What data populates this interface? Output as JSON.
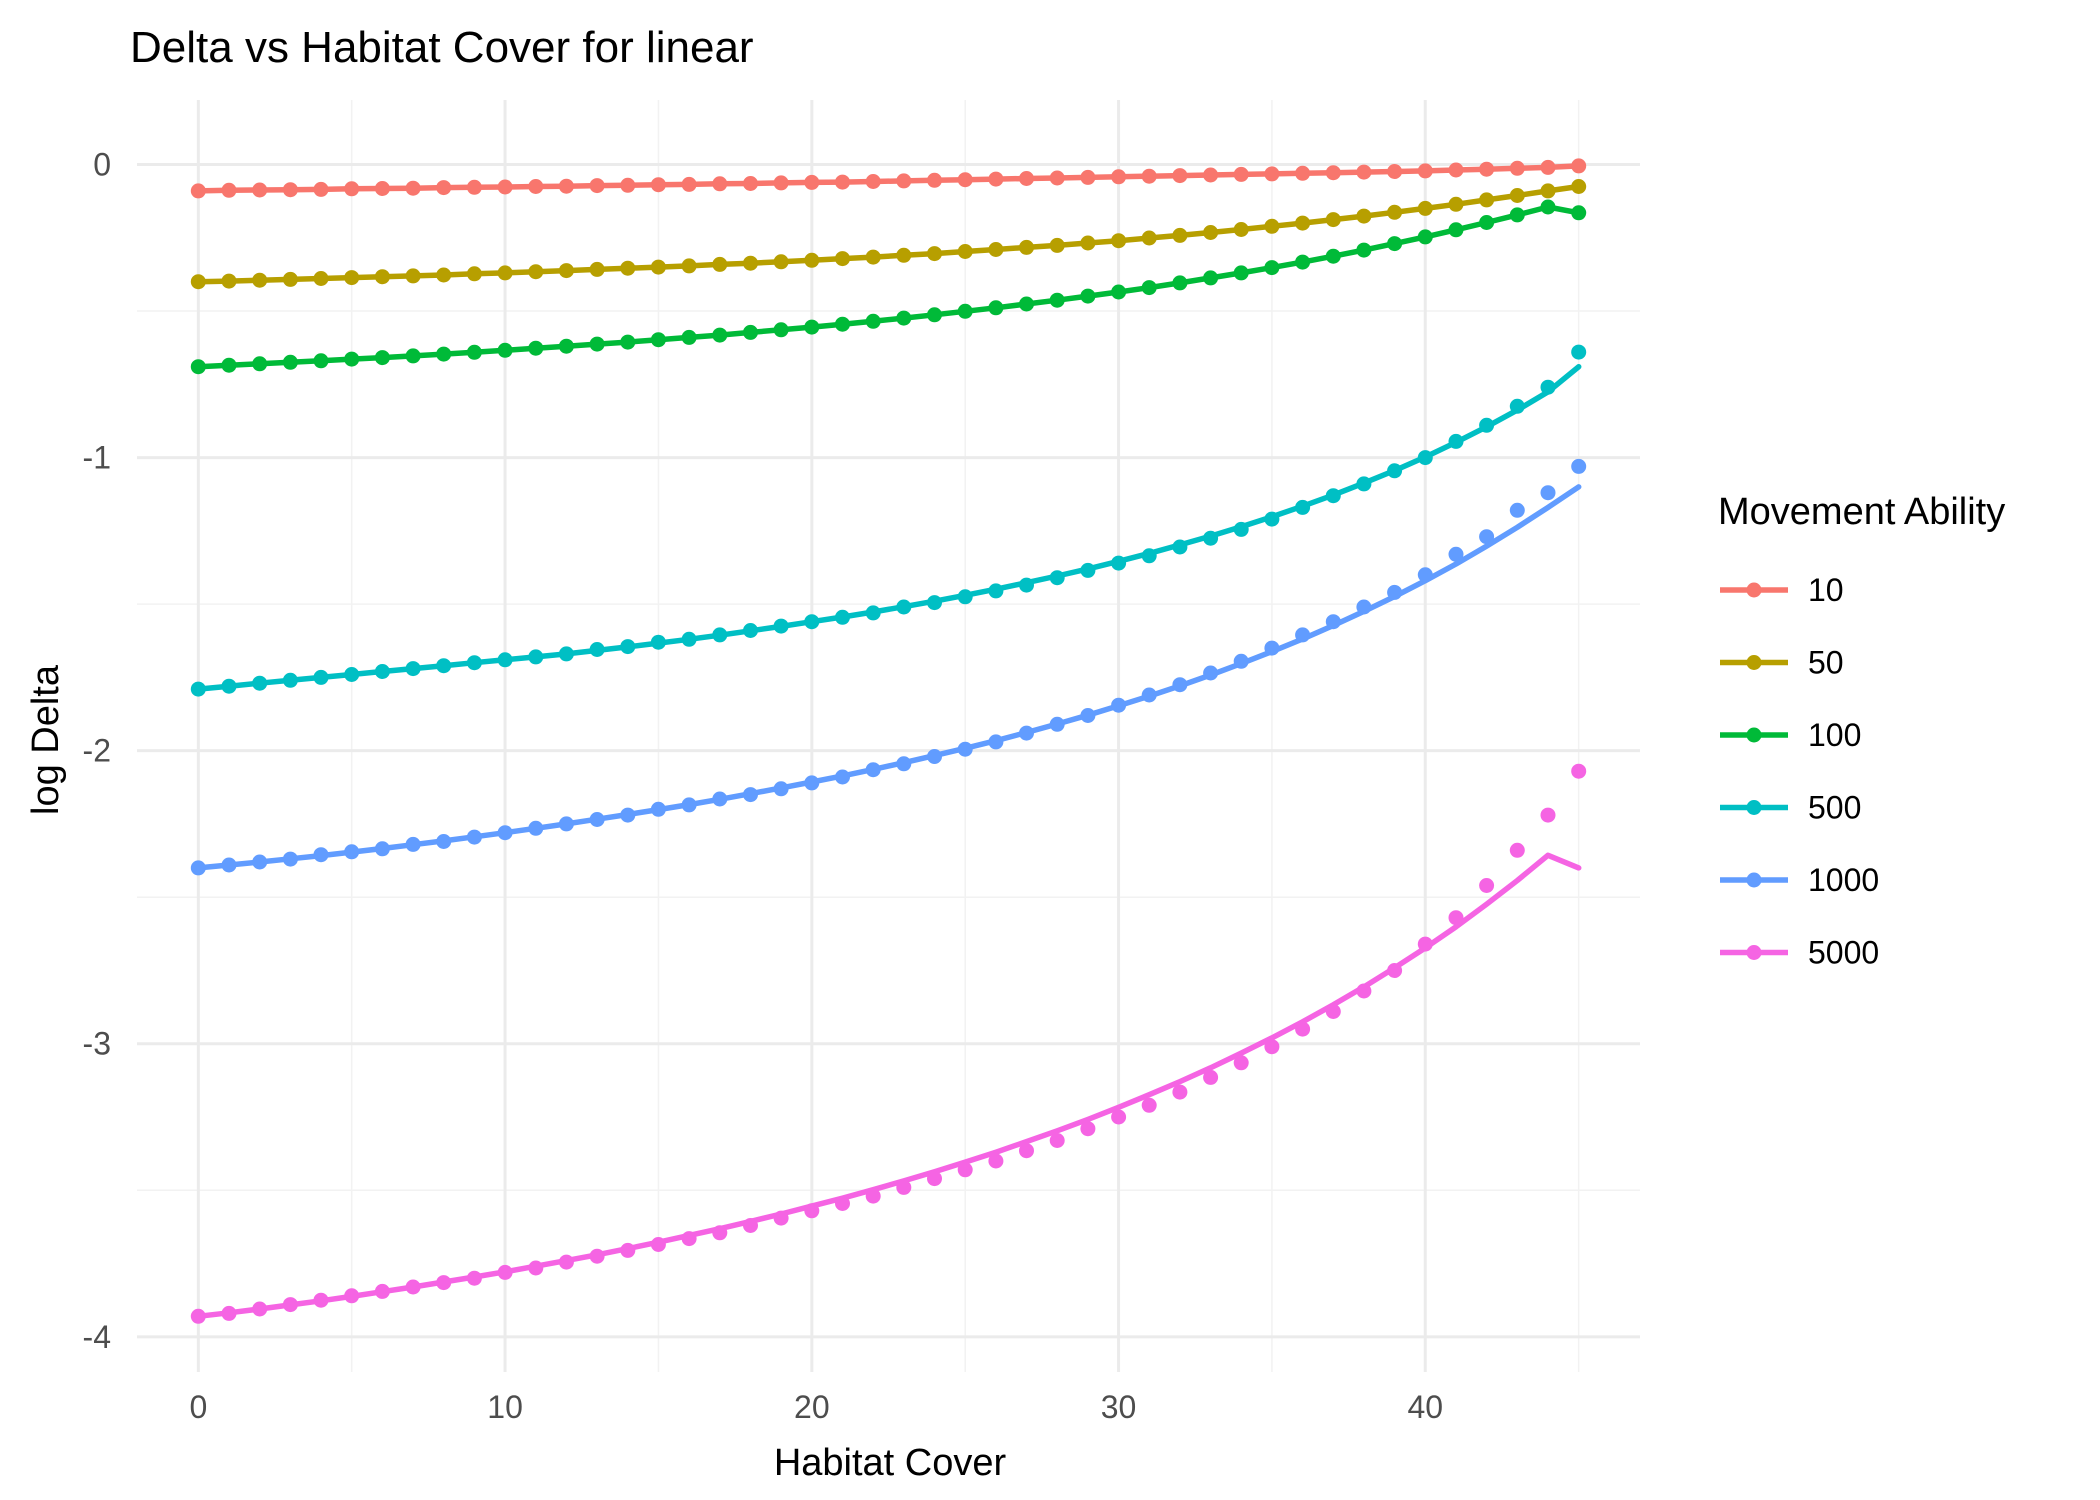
{
  "chart_data": {
    "type": "line",
    "title": "Delta vs Habitat Cover for linear",
    "xlabel": "Habitat Cover",
    "ylabel": "log Delta",
    "xlim": [
      -2,
      47
    ],
    "ylim": [
      -4.12,
      0.22
    ],
    "x_ticks": [
      0,
      10,
      20,
      30,
      40
    ],
    "y_ticks": [
      0,
      -1,
      -2,
      -3,
      -4
    ],
    "grid": true,
    "legend": {
      "title": "Movement Ability",
      "position": "right"
    },
    "x": [
      0,
      1,
      2,
      3,
      4,
      5,
      6,
      7,
      8,
      9,
      10,
      11,
      12,
      13,
      14,
      15,
      16,
      17,
      18,
      19,
      20,
      21,
      22,
      23,
      24,
      25,
      26,
      27,
      28,
      29,
      30,
      31,
      32,
      33,
      34,
      35,
      36,
      37,
      38,
      39,
      40,
      41,
      42,
      43,
      44,
      45
    ],
    "series": [
      {
        "name": "10",
        "color": "#F8766D",
        "values": [
          -0.09,
          -0.088,
          -0.087,
          -0.086,
          -0.085,
          -0.083,
          -0.082,
          -0.081,
          -0.079,
          -0.078,
          -0.077,
          -0.075,
          -0.074,
          -0.072,
          -0.071,
          -0.069,
          -0.068,
          -0.066,
          -0.065,
          -0.063,
          -0.061,
          -0.06,
          -0.058,
          -0.056,
          -0.054,
          -0.052,
          -0.05,
          -0.048,
          -0.046,
          -0.044,
          -0.042,
          -0.04,
          -0.038,
          -0.036,
          -0.034,
          -0.032,
          -0.03,
          -0.028,
          -0.026,
          -0.024,
          -0.022,
          -0.019,
          -0.016,
          -0.013,
          -0.01,
          -0.005
        ]
      },
      {
        "name": "50",
        "color": "#B79F00",
        "values": [
          -0.4,
          -0.398,
          -0.395,
          -0.392,
          -0.389,
          -0.386,
          -0.383,
          -0.38,
          -0.377,
          -0.373,
          -0.37,
          -0.366,
          -0.362,
          -0.358,
          -0.354,
          -0.35,
          -0.346,
          -0.341,
          -0.337,
          -0.332,
          -0.327,
          -0.321,
          -0.316,
          -0.31,
          -0.304,
          -0.297,
          -0.29,
          -0.283,
          -0.276,
          -0.268,
          -0.26,
          -0.251,
          -0.242,
          -0.232,
          -0.222,
          -0.211,
          -0.2,
          -0.188,
          -0.176,
          -0.163,
          -0.15,
          -0.136,
          -0.121,
          -0.106,
          -0.09,
          -0.075
        ]
      },
      {
        "name": "100",
        "color": "#00BA38",
        "values": [
          -0.69,
          -0.685,
          -0.68,
          -0.675,
          -0.67,
          -0.664,
          -0.659,
          -0.653,
          -0.647,
          -0.641,
          -0.634,
          -0.627,
          -0.62,
          -0.613,
          -0.606,
          -0.598,
          -0.59,
          -0.582,
          -0.573,
          -0.564,
          -0.555,
          -0.545,
          -0.535,
          -0.524,
          -0.513,
          -0.501,
          -0.489,
          -0.476,
          -0.463,
          -0.449,
          -0.435,
          -0.42,
          -0.404,
          -0.387,
          -0.37,
          -0.352,
          -0.333,
          -0.313,
          -0.292,
          -0.27,
          -0.247,
          -0.223,
          -0.198,
          -0.172,
          -0.145,
          -0.165
        ]
      },
      {
        "name": "500",
        "color": "#00BFC4",
        "values": [
          -1.79,
          -1.78,
          -1.77,
          -1.76,
          -1.75,
          -1.74,
          -1.73,
          -1.72,
          -1.71,
          -1.7,
          -1.69,
          -1.68,
          -1.67,
          -1.655,
          -1.645,
          -1.63,
          -1.62,
          -1.605,
          -1.59,
          -1.575,
          -1.56,
          -1.545,
          -1.53,
          -1.51,
          -1.495,
          -1.475,
          -1.455,
          -1.435,
          -1.41,
          -1.385,
          -1.36,
          -1.335,
          -1.305,
          -1.275,
          -1.245,
          -1.21,
          -1.17,
          -1.13,
          -1.09,
          -1.045,
          -1.0,
          -0.945,
          -0.89,
          -0.825,
          -0.76,
          -0.64
        ]
      },
      {
        "name": "1000",
        "color": "#619CFF",
        "values": [
          -2.4,
          -2.39,
          -2.38,
          -2.37,
          -2.355,
          -2.345,
          -2.335,
          -2.32,
          -2.31,
          -2.295,
          -2.28,
          -2.265,
          -2.25,
          -2.235,
          -2.22,
          -2.2,
          -2.185,
          -2.165,
          -2.15,
          -2.13,
          -2.11,
          -2.09,
          -2.065,
          -2.045,
          -2.02,
          -1.995,
          -1.97,
          -1.94,
          -1.91,
          -1.88,
          -1.845,
          -1.81,
          -1.775,
          -1.735,
          -1.695,
          -1.65,
          -1.605,
          -1.56,
          -1.51,
          -1.46,
          -1.4,
          -1.33,
          -1.27,
          -1.18,
          -1.12,
          -1.03
        ]
      },
      {
        "name": "5000",
        "color": "#F564E3",
        "values": [
          -3.93,
          -3.92,
          -3.905,
          -3.89,
          -3.875,
          -3.86,
          -3.845,
          -3.83,
          -3.815,
          -3.8,
          -3.78,
          -3.765,
          -3.745,
          -3.725,
          -3.705,
          -3.685,
          -3.665,
          -3.645,
          -3.62,
          -3.595,
          -3.57,
          -3.545,
          -3.52,
          -3.49,
          -3.46,
          -3.43,
          -3.4,
          -3.365,
          -3.33,
          -3.29,
          -3.25,
          -3.21,
          -3.165,
          -3.115,
          -3.065,
          -3.01,
          -2.95,
          -2.89,
          -2.82,
          -2.75,
          -2.66,
          -2.57,
          -2.46,
          -2.34,
          -2.22,
          -2.07
        ]
      }
    ],
    "fit_series": [
      {
        "name": "10",
        "values": [
          -0.09,
          -0.088,
          -0.087,
          -0.086,
          -0.085,
          -0.083,
          -0.082,
          -0.081,
          -0.079,
          -0.078,
          -0.077,
          -0.075,
          -0.074,
          -0.072,
          -0.071,
          -0.069,
          -0.068,
          -0.066,
          -0.065,
          -0.063,
          -0.061,
          -0.06,
          -0.058,
          -0.056,
          -0.054,
          -0.052,
          -0.05,
          -0.048,
          -0.046,
          -0.044,
          -0.042,
          -0.04,
          -0.038,
          -0.036,
          -0.034,
          -0.032,
          -0.03,
          -0.028,
          -0.026,
          -0.024,
          -0.022,
          -0.019,
          -0.016,
          -0.013,
          -0.01,
          -0.005
        ]
      },
      {
        "name": "50",
        "values": [
          -0.4,
          -0.398,
          -0.395,
          -0.392,
          -0.389,
          -0.386,
          -0.383,
          -0.38,
          -0.377,
          -0.373,
          -0.37,
          -0.366,
          -0.362,
          -0.358,
          -0.354,
          -0.35,
          -0.346,
          -0.341,
          -0.337,
          -0.332,
          -0.327,
          -0.321,
          -0.316,
          -0.31,
          -0.304,
          -0.297,
          -0.29,
          -0.283,
          -0.276,
          -0.268,
          -0.26,
          -0.251,
          -0.242,
          -0.232,
          -0.222,
          -0.211,
          -0.2,
          -0.188,
          -0.176,
          -0.163,
          -0.15,
          -0.136,
          -0.121,
          -0.106,
          -0.09,
          -0.075
        ]
      },
      {
        "name": "100",
        "values": [
          -0.69,
          -0.685,
          -0.68,
          -0.675,
          -0.67,
          -0.664,
          -0.659,
          -0.653,
          -0.647,
          -0.641,
          -0.634,
          -0.627,
          -0.62,
          -0.613,
          -0.606,
          -0.598,
          -0.59,
          -0.582,
          -0.573,
          -0.564,
          -0.555,
          -0.545,
          -0.535,
          -0.524,
          -0.513,
          -0.501,
          -0.489,
          -0.476,
          -0.463,
          -0.449,
          -0.435,
          -0.42,
          -0.404,
          -0.387,
          -0.37,
          -0.352,
          -0.333,
          -0.313,
          -0.292,
          -0.27,
          -0.247,
          -0.223,
          -0.198,
          -0.172,
          -0.145,
          -0.165
        ]
      },
      {
        "name": "500",
        "values": [
          -1.79,
          -1.78,
          -1.77,
          -1.76,
          -1.75,
          -1.74,
          -1.73,
          -1.72,
          -1.71,
          -1.7,
          -1.69,
          -1.68,
          -1.67,
          -1.658,
          -1.646,
          -1.633,
          -1.62,
          -1.606,
          -1.591,
          -1.576,
          -1.56,
          -1.544,
          -1.527,
          -1.509,
          -1.49,
          -1.47,
          -1.449,
          -1.427,
          -1.404,
          -1.38,
          -1.354,
          -1.327,
          -1.298,
          -1.268,
          -1.236,
          -1.202,
          -1.166,
          -1.128,
          -1.087,
          -1.044,
          -0.998,
          -0.948,
          -0.895,
          -0.838,
          -0.776,
          -0.69
        ]
      },
      {
        "name": "1000",
        "values": [
          -2.4,
          -2.39,
          -2.38,
          -2.369,
          -2.358,
          -2.346,
          -2.334,
          -2.321,
          -2.308,
          -2.294,
          -2.28,
          -2.265,
          -2.25,
          -2.234,
          -2.218,
          -2.201,
          -2.184,
          -2.166,
          -2.147,
          -2.127,
          -2.107,
          -2.086,
          -2.064,
          -2.041,
          -2.017,
          -1.992,
          -1.966,
          -1.938,
          -1.909,
          -1.879,
          -1.847,
          -1.814,
          -1.779,
          -1.742,
          -1.703,
          -1.662,
          -1.619,
          -1.573,
          -1.525,
          -1.474,
          -1.42,
          -1.363,
          -1.302,
          -1.238,
          -1.17,
          -1.1
        ]
      },
      {
        "name": "5000",
        "values": [
          -3.93,
          -3.918,
          -3.905,
          -3.891,
          -3.877,
          -3.862,
          -3.846,
          -3.83,
          -3.813,
          -3.796,
          -3.778,
          -3.759,
          -3.74,
          -3.72,
          -3.699,
          -3.677,
          -3.654,
          -3.631,
          -3.606,
          -3.581,
          -3.554,
          -3.527,
          -3.498,
          -3.468,
          -3.437,
          -3.404,
          -3.37,
          -3.334,
          -3.297,
          -3.258,
          -3.217,
          -3.174,
          -3.129,
          -3.082,
          -3.032,
          -2.98,
          -2.925,
          -2.867,
          -2.806,
          -2.741,
          -2.673,
          -2.601,
          -2.524,
          -2.443,
          -2.357,
          -2.4
        ]
      }
    ]
  }
}
